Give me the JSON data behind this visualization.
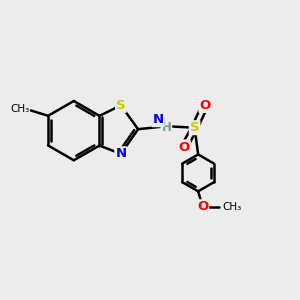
{
  "background_color": "#ececec",
  "atom_colors": {
    "S": "#cccc00",
    "N": "#0000ff",
    "O": "#ff0000",
    "H": "#7a9a9a",
    "C": "#000000"
  },
  "bond_color": "#000000",
  "bond_width": 1.8,
  "figsize": [
    3.0,
    3.0
  ],
  "dpi": 100
}
